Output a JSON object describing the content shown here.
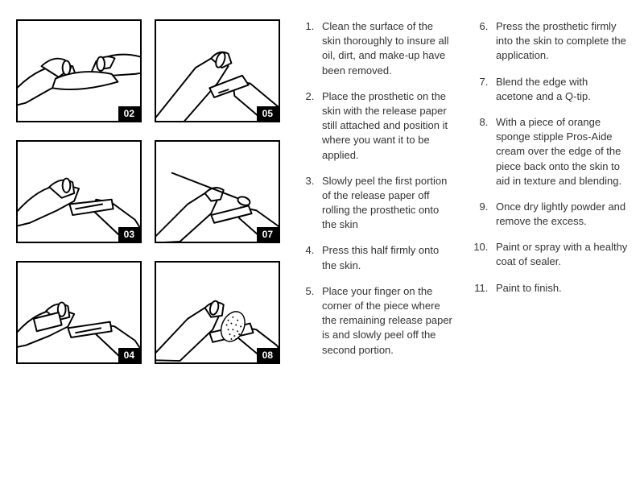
{
  "illustrations": [
    {
      "badge": "02"
    },
    {
      "badge": "05"
    },
    {
      "badge": "03"
    },
    {
      "badge": "07"
    },
    {
      "badge": "04"
    },
    {
      "badge": "08"
    }
  ],
  "stepsCol1": [
    "Clean the surface of the skin thoroughly to insure all oil, dirt, and make-up have been removed.",
    "Place the prosthetic on the skin with the release paper still attached and position it where you want it to be applied.",
    "Slowly peel the first portion of the release paper off rolling the prosthetic onto the skin",
    "Press this half firmly onto the skin.",
    "Place your finger on the corner of the piece where the remaining release paper is and slowly peel off the second portion."
  ],
  "stepsCol2": [
    "Press the prosthetic firmly into the skin to complete the application.",
    "Blend the edge with acetone and a Q-tip.",
    "With a piece of orange sponge stipple Pros-Aide cream over the edge of the piece back onto the skin to aid in texture and blending.",
    "Once dry lightly powder and remove the excess.",
    "Paint or spray with a healthy coat of sealer.",
    "Paint to finish."
  ],
  "col2Start": 6
}
